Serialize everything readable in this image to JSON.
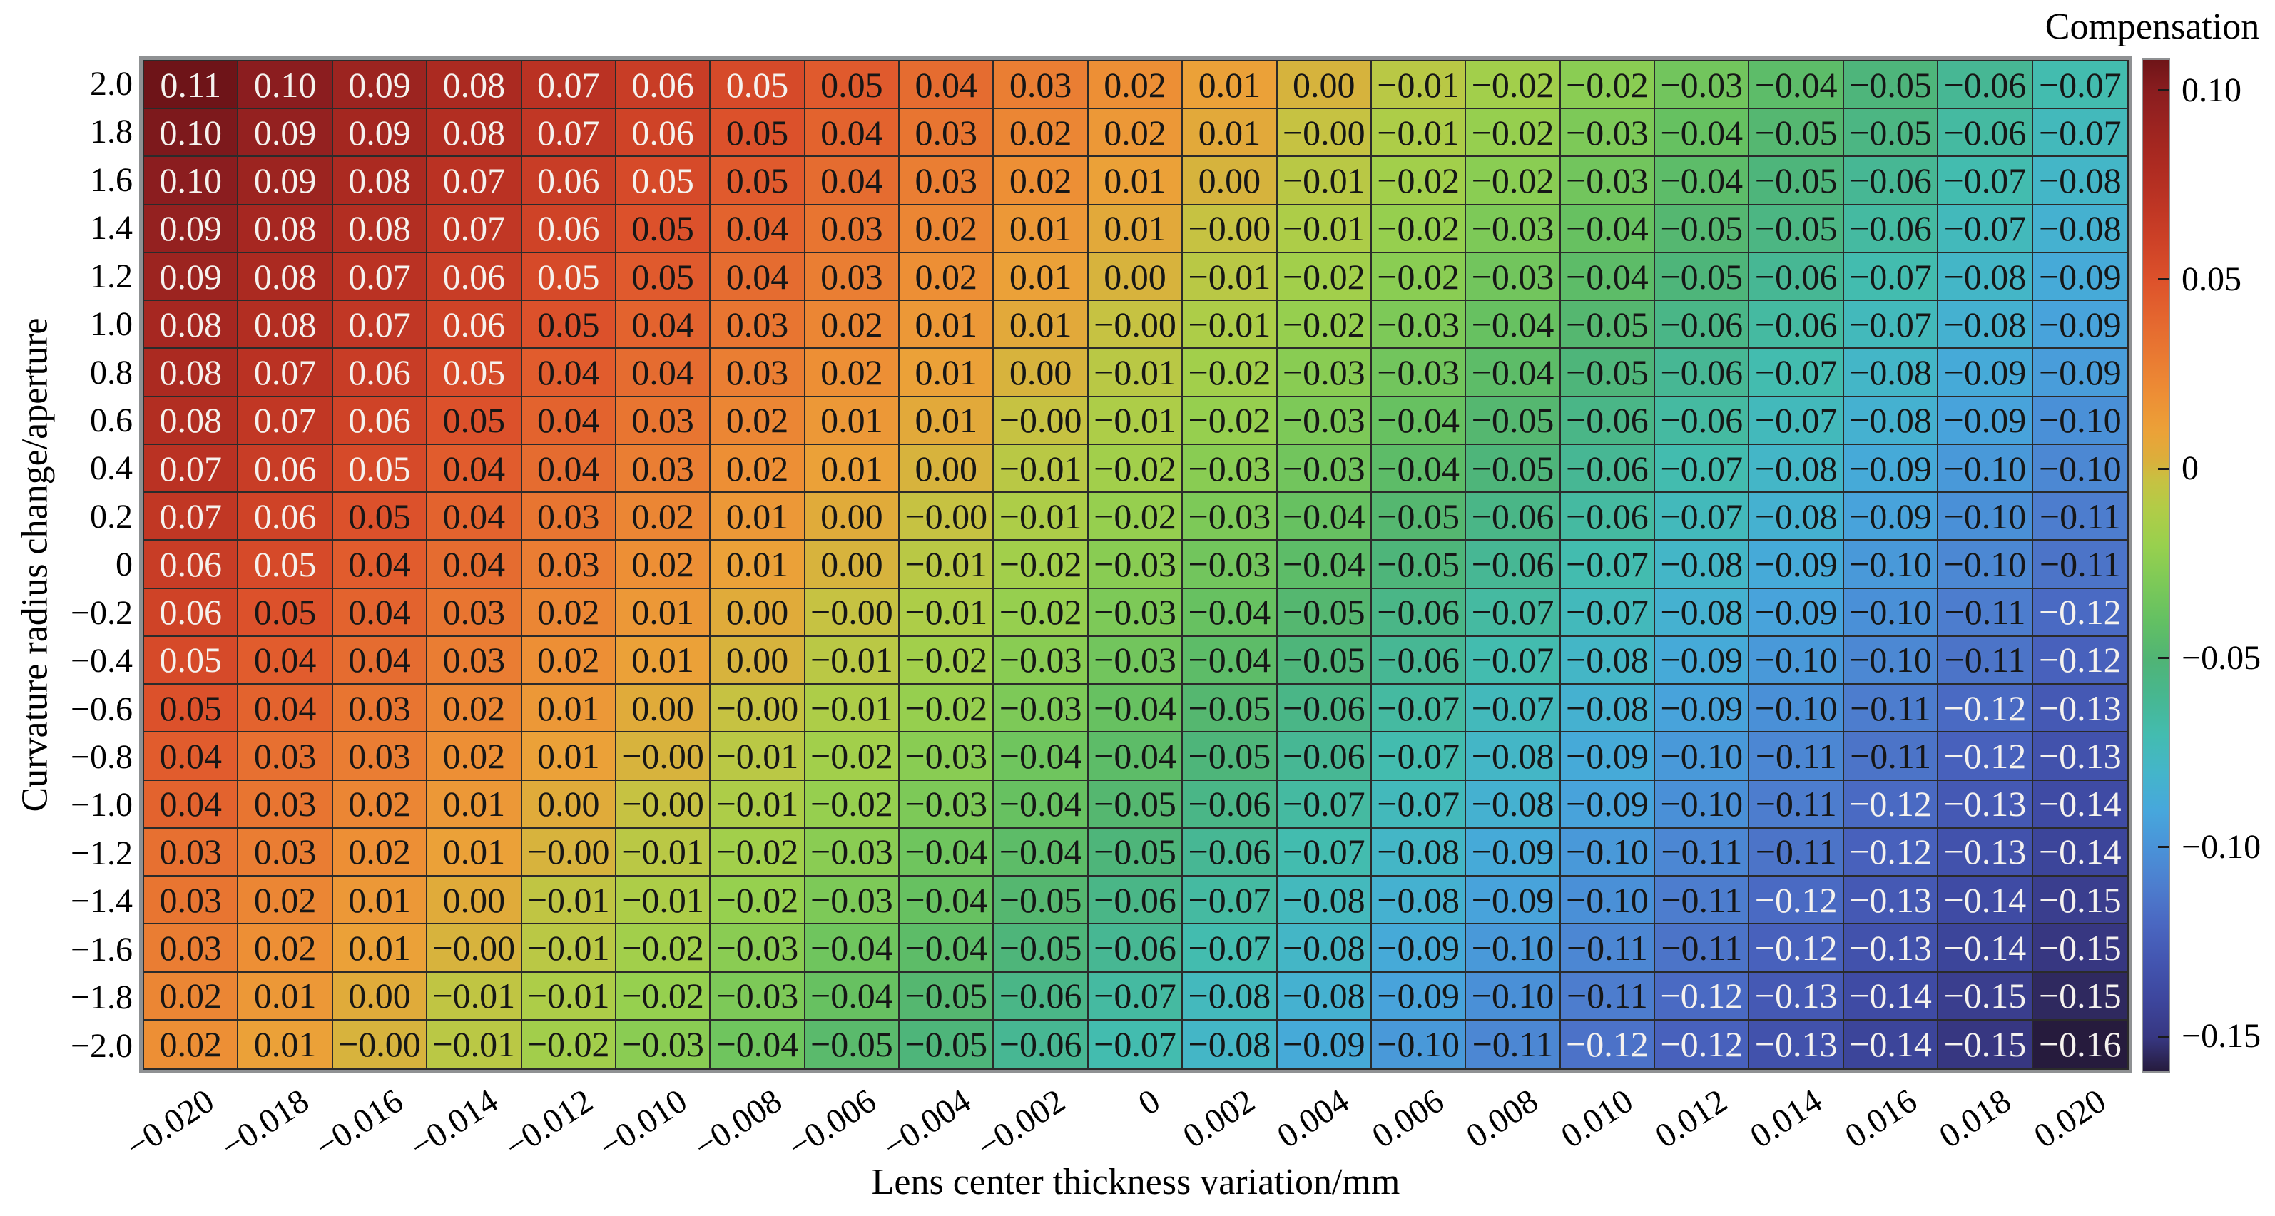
{
  "chart_data": {
    "type": "heatmap",
    "title": "Compensation",
    "xlabel": "Lens center thickness variation/mm",
    "ylabel": "Curvature radius change/aperture",
    "legend": "none",
    "grid": "on",
    "x_tick_labels": [
      "-0.020",
      "-0.018",
      "-0.016",
      "-0.014",
      "-0.012",
      "-0.010",
      "-0.008",
      "-0.006",
      "-0.004",
      "-0.002",
      "0",
      "0.002",
      "0.004",
      "0.006",
      "0.008",
      "0.010",
      "0.012",
      "0.014",
      "0.016",
      "0.018",
      "0.020"
    ],
    "y_tick_labels": [
      "2.0",
      "1.8",
      "1.6",
      "1.4",
      "1.2",
      "1.0",
      "0.8",
      "0.6",
      "0.4",
      "0.2",
      "0",
      "-0.2",
      "-0.4",
      "-0.6",
      "-0.8",
      "-1.0",
      "-1.2",
      "-1.4",
      "-1.6",
      "-1.8",
      "-2.0"
    ],
    "x_range": [
      -0.02,
      0.02
    ],
    "y_range": [
      -2.0,
      2.0
    ],
    "values": [
      [
        "0.11",
        "0.10",
        "0.09",
        "0.08",
        "0.07",
        "0.06",
        "0.05",
        "0.05",
        "0.04",
        "0.03",
        "0.02",
        "0.01",
        "0.00",
        "-0.01",
        "-0.02",
        "-0.02",
        "-0.03",
        "-0.04",
        "-0.05",
        "-0.06",
        "-0.07"
      ],
      [
        "0.10",
        "0.09",
        "0.09",
        "0.08",
        "0.07",
        "0.06",
        "0.05",
        "0.04",
        "0.03",
        "0.02",
        "0.02",
        "0.01",
        "-0.00",
        "-0.01",
        "-0.02",
        "-0.03",
        "-0.04",
        "-0.05",
        "-0.05",
        "-0.06",
        "-0.07"
      ],
      [
        "0.10",
        "0.09",
        "0.08",
        "0.07",
        "0.06",
        "0.05",
        "0.05",
        "0.04",
        "0.03",
        "0.02",
        "0.01",
        "0.00",
        "-0.01",
        "-0.02",
        "-0.02",
        "-0.03",
        "-0.04",
        "-0.05",
        "-0.06",
        "-0.07",
        "-0.08"
      ],
      [
        "0.09",
        "0.08",
        "0.08",
        "0.07",
        "0.06",
        "0.05",
        "0.04",
        "0.03",
        "0.02",
        "0.01",
        "0.01",
        "-0.00",
        "-0.01",
        "-0.02",
        "-0.03",
        "-0.04",
        "-0.05",
        "-0.05",
        "-0.06",
        "-0.07",
        "-0.08"
      ],
      [
        "0.09",
        "0.08",
        "0.07",
        "0.06",
        "0.05",
        "0.05",
        "0.04",
        "0.03",
        "0.02",
        "0.01",
        "0.00",
        "-0.01",
        "-0.02",
        "-0.02",
        "-0.03",
        "-0.04",
        "-0.05",
        "-0.06",
        "-0.07",
        "-0.08",
        "-0.09"
      ],
      [
        "0.08",
        "0.08",
        "0.07",
        "0.06",
        "0.05",
        "0.04",
        "0.03",
        "0.02",
        "0.01",
        "0.01",
        "-0.00",
        "-0.01",
        "-0.02",
        "-0.03",
        "-0.04",
        "-0.05",
        "-0.06",
        "-0.06",
        "-0.07",
        "-0.08",
        "-0.09"
      ],
      [
        "0.08",
        "0.07",
        "0.06",
        "0.05",
        "0.04",
        "0.04",
        "0.03",
        "0.02",
        "0.01",
        "0.00",
        "-0.01",
        "-0.02",
        "-0.03",
        "-0.03",
        "-0.04",
        "-0.05",
        "-0.06",
        "-0.07",
        "-0.08",
        "-0.09",
        "-0.09"
      ],
      [
        "0.08",
        "0.07",
        "0.06",
        "0.05",
        "0.04",
        "0.03",
        "0.02",
        "0.01",
        "0.01",
        "-0.00",
        "-0.01",
        "-0.02",
        "-0.03",
        "-0.04",
        "-0.05",
        "-0.06",
        "-0.06",
        "-0.07",
        "-0.08",
        "-0.09",
        "-0.10"
      ],
      [
        "0.07",
        "0.06",
        "0.05",
        "0.04",
        "0.04",
        "0.03",
        "0.02",
        "0.01",
        "0.00",
        "-0.01",
        "-0.02",
        "-0.03",
        "-0.03",
        "-0.04",
        "-0.05",
        "-0.06",
        "-0.07",
        "-0.08",
        "-0.09",
        "-0.10",
        "-0.10"
      ],
      [
        "0.07",
        "0.06",
        "0.05",
        "0.04",
        "0.03",
        "0.02",
        "0.01",
        "0.00",
        "-0.00",
        "-0.01",
        "-0.02",
        "-0.03",
        "-0.04",
        "-0.05",
        "-0.06",
        "-0.06",
        "-0.07",
        "-0.08",
        "-0.09",
        "-0.10",
        "-0.11"
      ],
      [
        "0.06",
        "0.05",
        "0.04",
        "0.04",
        "0.03",
        "0.02",
        "0.01",
        "0.00",
        "-0.01",
        "-0.02",
        "-0.03",
        "-0.03",
        "-0.04",
        "-0.05",
        "-0.06",
        "-0.07",
        "-0.08",
        "-0.09",
        "-0.10",
        "-0.10",
        "-0.11"
      ],
      [
        "0.06",
        "0.05",
        "0.04",
        "0.03",
        "0.02",
        "0.01",
        "0.00",
        "-0.00",
        "-0.01",
        "-0.02",
        "-0.03",
        "-0.04",
        "-0.05",
        "-0.06",
        "-0.07",
        "-0.07",
        "-0.08",
        "-0.09",
        "-0.10",
        "-0.11",
        "-0.12"
      ],
      [
        "0.05",
        "0.04",
        "0.04",
        "0.03",
        "0.02",
        "0.01",
        "0.00",
        "-0.01",
        "-0.02",
        "-0.03",
        "-0.03",
        "-0.04",
        "-0.05",
        "-0.06",
        "-0.07",
        "-0.08",
        "-0.09",
        "-0.10",
        "-0.10",
        "-0.11",
        "-0.12"
      ],
      [
        "0.05",
        "0.04",
        "0.03",
        "0.02",
        "0.01",
        "0.00",
        "-0.00",
        "-0.01",
        "-0.02",
        "-0.03",
        "-0.04",
        "-0.05",
        "-0.06",
        "-0.07",
        "-0.07",
        "-0.08",
        "-0.09",
        "-0.10",
        "-0.11",
        "-0.12",
        "-0.13"
      ],
      [
        "0.04",
        "0.03",
        "0.03",
        "0.02",
        "0.01",
        "-0.00",
        "-0.01",
        "-0.02",
        "-0.03",
        "-0.04",
        "-0.04",
        "-0.05",
        "-0.06",
        "-0.07",
        "-0.08",
        "-0.09",
        "-0.10",
        "-0.11",
        "-0.11",
        "-0.12",
        "-0.13"
      ],
      [
        "0.04",
        "0.03",
        "0.02",
        "0.01",
        "0.00",
        "-0.00",
        "-0.01",
        "-0.02",
        "-0.03",
        "-0.04",
        "-0.05",
        "-0.06",
        "-0.07",
        "-0.07",
        "-0.08",
        "-0.09",
        "-0.10",
        "-0.11",
        "-0.12",
        "-0.13",
        "-0.14"
      ],
      [
        "0.03",
        "0.03",
        "0.02",
        "0.01",
        "-0.00",
        "-0.01",
        "-0.02",
        "-0.03",
        "-0.04",
        "-0.04",
        "-0.05",
        "-0.06",
        "-0.07",
        "-0.08",
        "-0.09",
        "-0.10",
        "-0.11",
        "-0.11",
        "-0.12",
        "-0.13",
        "-0.14"
      ],
      [
        "0.03",
        "0.02",
        "0.01",
        "0.00",
        "-0.01",
        "-0.01",
        "-0.02",
        "-0.03",
        "-0.04",
        "-0.05",
        "-0.06",
        "-0.07",
        "-0.08",
        "-0.08",
        "-0.09",
        "-0.10",
        "-0.11",
        "-0.12",
        "-0.13",
        "-0.14",
        "-0.15"
      ],
      [
        "0.03",
        "0.02",
        "0.01",
        "-0.00",
        "-0.01",
        "-0.02",
        "-0.03",
        "-0.04",
        "-0.04",
        "-0.05",
        "-0.06",
        "-0.07",
        "-0.08",
        "-0.09",
        "-0.10",
        "-0.11",
        "-0.11",
        "-0.12",
        "-0.13",
        "-0.14",
        "-0.15"
      ],
      [
        "0.02",
        "0.01",
        "0.00",
        "-0.01",
        "-0.01",
        "-0.02",
        "-0.03",
        "-0.04",
        "-0.05",
        "-0.06",
        "-0.07",
        "-0.08",
        "-0.08",
        "-0.09",
        "-0.10",
        "-0.11",
        "-0.12",
        "-0.13",
        "-0.14",
        "-0.15",
        "-0.15"
      ],
      [
        "0.02",
        "0.01",
        "-0.00",
        "-0.01",
        "-0.02",
        "-0.03",
        "-0.04",
        "-0.05",
        "-0.05",
        "-0.06",
        "-0.07",
        "-0.08",
        "-0.09",
        "-0.10",
        "-0.11",
        "-0.12",
        "-0.12",
        "-0.13",
        "-0.14",
        "-0.15",
        "-0.16"
      ]
    ],
    "colorbar": {
      "title": "Compensation",
      "tick_labels": [
        "0.10",
        "0.05",
        "0",
        "-0.05",
        "-0.10",
        "-0.15"
      ],
      "tick_values": [
        0.1,
        0.05,
        0,
        -0.05,
        -0.1,
        -0.15
      ],
      "vmax": 0.1084,
      "vmin": -0.1588
    },
    "colormap_stops": [
      [
        0.1084,
        "#6e1418"
      ],
      [
        0.1,
        "#8a1d1f"
      ],
      [
        0.09,
        "#9d2420"
      ],
      [
        0.08,
        "#ae2b21"
      ],
      [
        0.07,
        "#be3524"
      ],
      [
        0.06,
        "#ce4227"
      ],
      [
        0.05,
        "#dd522b"
      ],
      [
        0.04,
        "#e4662f"
      ],
      [
        0.03,
        "#e97a32"
      ],
      [
        0.02,
        "#ed8e35"
      ],
      [
        0.01,
        "#eba238"
      ],
      [
        0.003,
        "#dcae3b"
      ],
      [
        -0.003,
        "#c6c242"
      ],
      [
        -0.01,
        "#b2cc47"
      ],
      [
        -0.02,
        "#98d04e"
      ],
      [
        -0.03,
        "#7cc958"
      ],
      [
        -0.04,
        "#63c063"
      ],
      [
        -0.05,
        "#50b475"
      ],
      [
        -0.06,
        "#47b791"
      ],
      [
        -0.07,
        "#43bcb0"
      ],
      [
        -0.08,
        "#44b5ca"
      ],
      [
        -0.09,
        "#47a7dc"
      ],
      [
        -0.1,
        "#4a92d8"
      ],
      [
        -0.11,
        "#4d7dce"
      ],
      [
        -0.12,
        "#4a67c1"
      ],
      [
        -0.13,
        "#4355b0"
      ],
      [
        -0.14,
        "#3d469d"
      ],
      [
        -0.15,
        "#373781"
      ],
      [
        -0.1588,
        "#261b3d"
      ]
    ],
    "cell_text_colors": {
      "light": "#f5f2ee",
      "dark": "#161616"
    }
  }
}
